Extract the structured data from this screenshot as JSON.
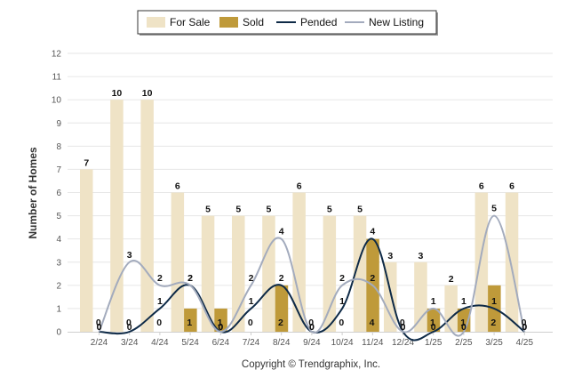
{
  "chart_data": {
    "type": "bar",
    "categories": [
      "2/24",
      "3/24",
      "4/24",
      "5/24",
      "6/24",
      "7/24",
      "8/24",
      "9/24",
      "10/24",
      "11/24",
      "12/24",
      "1/25",
      "2/25",
      "3/25",
      "4/25"
    ],
    "series": [
      {
        "name": "For Sale",
        "type": "bar",
        "color": "#efe3c6",
        "values": [
          7,
          10,
          10,
          6,
          5,
          5,
          5,
          6,
          5,
          5,
          3,
          3,
          2,
          6,
          6
        ]
      },
      {
        "name": "Sold",
        "type": "bar",
        "color": "#bf9a3a",
        "values": [
          0,
          0,
          0,
          1,
          1,
          0,
          2,
          0,
          0,
          4,
          0,
          1,
          1,
          2,
          0
        ]
      },
      {
        "name": "Pended",
        "type": "line",
        "color": "#0e2a47",
        "values": [
          0,
          0,
          1,
          2,
          0,
          1,
          2,
          0,
          1,
          4,
          0,
          0,
          1,
          1,
          0
        ]
      },
      {
        "name": "New Listing",
        "type": "line",
        "color": "#a3abbd",
        "values": [
          0,
          3,
          2,
          2,
          0,
          2,
          4,
          0,
          2,
          2,
          0,
          1,
          0,
          5,
          0
        ]
      }
    ],
    "ylabel": "Number of Homes",
    "xlabel": "",
    "ylim": [
      0,
      12
    ],
    "yticks": [
      0,
      1,
      2,
      3,
      4,
      5,
      6,
      7,
      8,
      9,
      10,
      11,
      12
    ],
    "grid": true,
    "legend": "top-center",
    "footer": "Copyright © Trendgraphix, Inc."
  }
}
